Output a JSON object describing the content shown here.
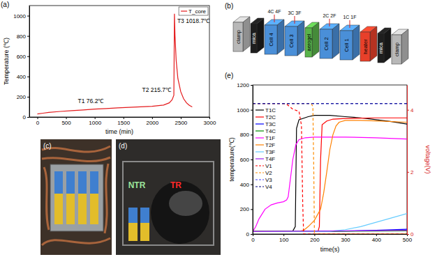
{
  "chart_data": [
    {
      "type": "line",
      "panel": "(a)",
      "x_label": "time (min)",
      "y_label": "Temperature (℃)",
      "xlim": [
        -140,
        3000
      ],
      "xticks": [
        0,
        500,
        1000,
        1500,
        2000,
        2500,
        3000
      ],
      "ylim": [
        0,
        1100
      ],
      "yticks": [
        0,
        200,
        400,
        600,
        800,
        1000
      ],
      "legend": "upper right",
      "series": [
        {
          "name": "T_core",
          "color": "#e41a1c",
          "x": [
            0,
            100,
            200,
            400,
            600,
            800,
            1000,
            1200,
            1400,
            1600,
            1800,
            2000,
            2200,
            2300,
            2350,
            2380,
            2385,
            2390,
            2400,
            2420,
            2450,
            2500,
            2550,
            2600,
            2650,
            2700
          ],
          "values": [
            30,
            38,
            45,
            55,
            63,
            70,
            78,
            84,
            90,
            95,
            100,
            106,
            118,
            140,
            170,
            215.7,
            600,
            1018.7,
            800,
            560,
            380,
            250,
            180,
            140,
            115,
            100
          ]
        }
      ],
      "annotations": [
        {
          "text": "T1 76.2℃",
          "x": 950,
          "y": 76.2
        },
        {
          "text": "T2 215.7℃",
          "x": 2380,
          "y": 215.7
        },
        {
          "text": "T3 1018.7℃",
          "x": 2390,
          "y": 1018.7
        }
      ]
    },
    {
      "type": "line",
      "panel": "(e)",
      "x_label": "time(s)",
      "y_label": "temperature(℃)",
      "y2_label": "voltage(V)",
      "xlim": [
        0,
        500
      ],
      "xticks": [
        0,
        100,
        200,
        300,
        400,
        500
      ],
      "ylim": [
        0,
        1200
      ],
      "yticks": [
        0,
        200,
        400,
        600,
        800,
        1000,
        1200
      ],
      "y2lim": [
        0,
        4.8
      ],
      "y2ticks": [
        0,
        2,
        4
      ],
      "legend": "upper left",
      "series": [
        {
          "name": "T1C",
          "color": "#000000",
          "x": [
            0,
            50,
            100,
            130,
            138,
            142,
            150,
            180,
            200,
            250,
            300,
            350,
            400,
            450,
            500
          ],
          "values": [
            22,
            22,
            23,
            25,
            60,
            850,
            920,
            945,
            955,
            955,
            945,
            935,
            920,
            905,
            885
          ]
        },
        {
          "name": "T2C",
          "color": "#ff0000",
          "x": [
            0,
            100,
            200,
            212,
            216,
            220,
            225,
            240,
            260,
            300,
            400,
            500
          ],
          "values": [
            20,
            20,
            22,
            25,
            60,
            600,
            880,
            910,
            925,
            930,
            935,
            935
          ]
        },
        {
          "name": "T3C",
          "color": "#0000ff",
          "x": [
            0,
            200,
            300,
            400,
            500
          ],
          "values": [
            20,
            20,
            24,
            30,
            38
          ]
        },
        {
          "name": "T4C",
          "color": "#008a00",
          "x": [
            0,
            250,
            500
          ],
          "values": [
            20,
            22,
            26
          ]
        },
        {
          "name": "T1F",
          "color": "#ff00ff",
          "x": [
            0,
            10,
            20,
            40,
            60,
            80,
            100,
            110,
            115,
            120,
            130,
            140,
            150,
            170,
            200,
            300,
            400,
            500
          ],
          "values": [
            20,
            60,
            120,
            200,
            235,
            250,
            260,
            275,
            300,
            400,
            600,
            720,
            760,
            775,
            780,
            780,
            775,
            765
          ]
        },
        {
          "name": "T2F",
          "color": "#ff8000",
          "x": [
            0,
            150,
            165,
            180,
            200,
            220,
            230,
            240,
            250,
            260,
            270,
            280,
            300,
            350,
            400,
            500
          ],
          "values": [
            20,
            22,
            30,
            60,
            110,
            200,
            330,
            500,
            680,
            800,
            870,
            900,
            915,
            915,
            910,
            900
          ]
        },
        {
          "name": "T3F",
          "color": "#66ccff",
          "x": [
            0,
            250,
            300,
            350,
            400,
            450,
            500
          ],
          "values": [
            20,
            22,
            35,
            60,
            95,
            130,
            165
          ]
        },
        {
          "name": "T4F",
          "color": "#a020f0",
          "x": [
            0,
            250,
            500
          ],
          "values": [
            20,
            24,
            30
          ]
        },
        {
          "name": "V1",
          "color": "#ff0000",
          "axis": "y2",
          "line_style": "dashed",
          "x": [
            0,
            100,
            110,
            120,
            130,
            150,
            158,
            162,
            165,
            500
          ],
          "values": [
            4.2,
            4.2,
            4.18,
            4.1,
            4.02,
            3.95,
            3.5,
            1.0,
            0,
            0
          ]
        },
        {
          "name": "V2",
          "color": "#ff8c00",
          "axis": "y2",
          "line_style": "dashed",
          "x": [
            0,
            190,
            195,
            198,
            200,
            500
          ],
          "values": [
            4.2,
            4.2,
            4.1,
            2.0,
            0,
            0
          ]
        },
        {
          "name": "V3",
          "color": "#4040ff",
          "axis": "y2",
          "line_style": "dashed",
          "x": [
            0,
            500
          ],
          "values": [
            4.2,
            4.2
          ]
        },
        {
          "name": "V4",
          "color": "#000080",
          "axis": "y2",
          "line_style": "dashed",
          "x": [
            0,
            500
          ],
          "values": [
            4.2,
            4.2
          ]
        }
      ]
    }
  ],
  "diagram": {
    "panel": "(b)",
    "components": [
      {
        "label": "clamp",
        "color": "#b8b8b8"
      },
      {
        "label": "mica",
        "color": "#1e1e1e"
      },
      {
        "label": "Cell 4",
        "color": "#4a8fd8",
        "sensor": "4C 4F"
      },
      {
        "label": "Cell 3",
        "color": "#4a8fd8",
        "sensor": "3C 3F"
      },
      {
        "label": "aerogel",
        "color": "#59b34a"
      },
      {
        "label": "Cell 2",
        "color": "#4a8fd8",
        "sensor": "2C 2F"
      },
      {
        "label": "Cell 1",
        "color": "#4a8fd8",
        "sensor": "1C 1F"
      },
      {
        "label": "heater",
        "color": "#e8402a"
      },
      {
        "label": "mica",
        "color": "#1e1e1e"
      },
      {
        "label": "clamp",
        "color": "#b8b8b8"
      }
    ]
  },
  "photos": [
    {
      "panel": "(c)"
    },
    {
      "panel": "(d)",
      "labels": [
        {
          "text": "NTR",
          "color": "#9be39b"
        },
        {
          "text": "TR",
          "color": "#ff2a2a"
        }
      ]
    }
  ]
}
